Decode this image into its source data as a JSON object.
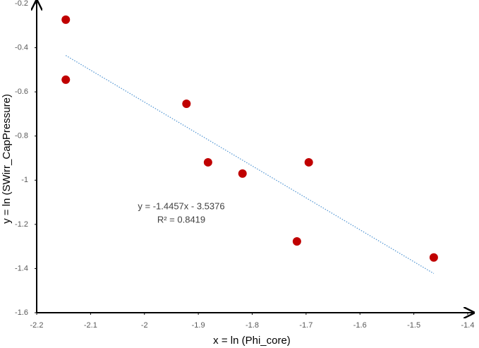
{
  "chart_data": {
    "type": "scatter",
    "x_label": "x = ln (Phi_core)",
    "y_label": "y = ln (SWirr_CapPressure)",
    "x": [
      -2.146,
      -2.146,
      -1.922,
      -1.882,
      -1.818,
      -1.695,
      -1.717,
      -1.463
    ],
    "series": [
      {
        "color": "#c00000",
        "values": [
          -0.273,
          -0.545,
          -0.654,
          -0.919,
          -0.97,
          -0.919,
          -1.277,
          -1.35
        ]
      }
    ],
    "xlim": [
      -2.2,
      -1.4
    ],
    "xticks": [
      -2.2,
      -2.1,
      -2,
      -1.9,
      -1.8,
      -1.7,
      -1.6,
      -1.5,
      -1.4
    ],
    "ylim": [
      -1.6,
      -0.2
    ],
    "yticks": [
      -1.6,
      -1.4,
      -1.2,
      -1,
      -0.8,
      -0.6,
      -0.4,
      -0.2
    ],
    "grid": false,
    "trendline": {
      "slope": -1.4457,
      "intercept": -3.5376,
      "color": "#5b9bd5",
      "equation": "y = -1.4457x - 3.5376",
      "r_squared": "R² = 0.8419"
    }
  }
}
